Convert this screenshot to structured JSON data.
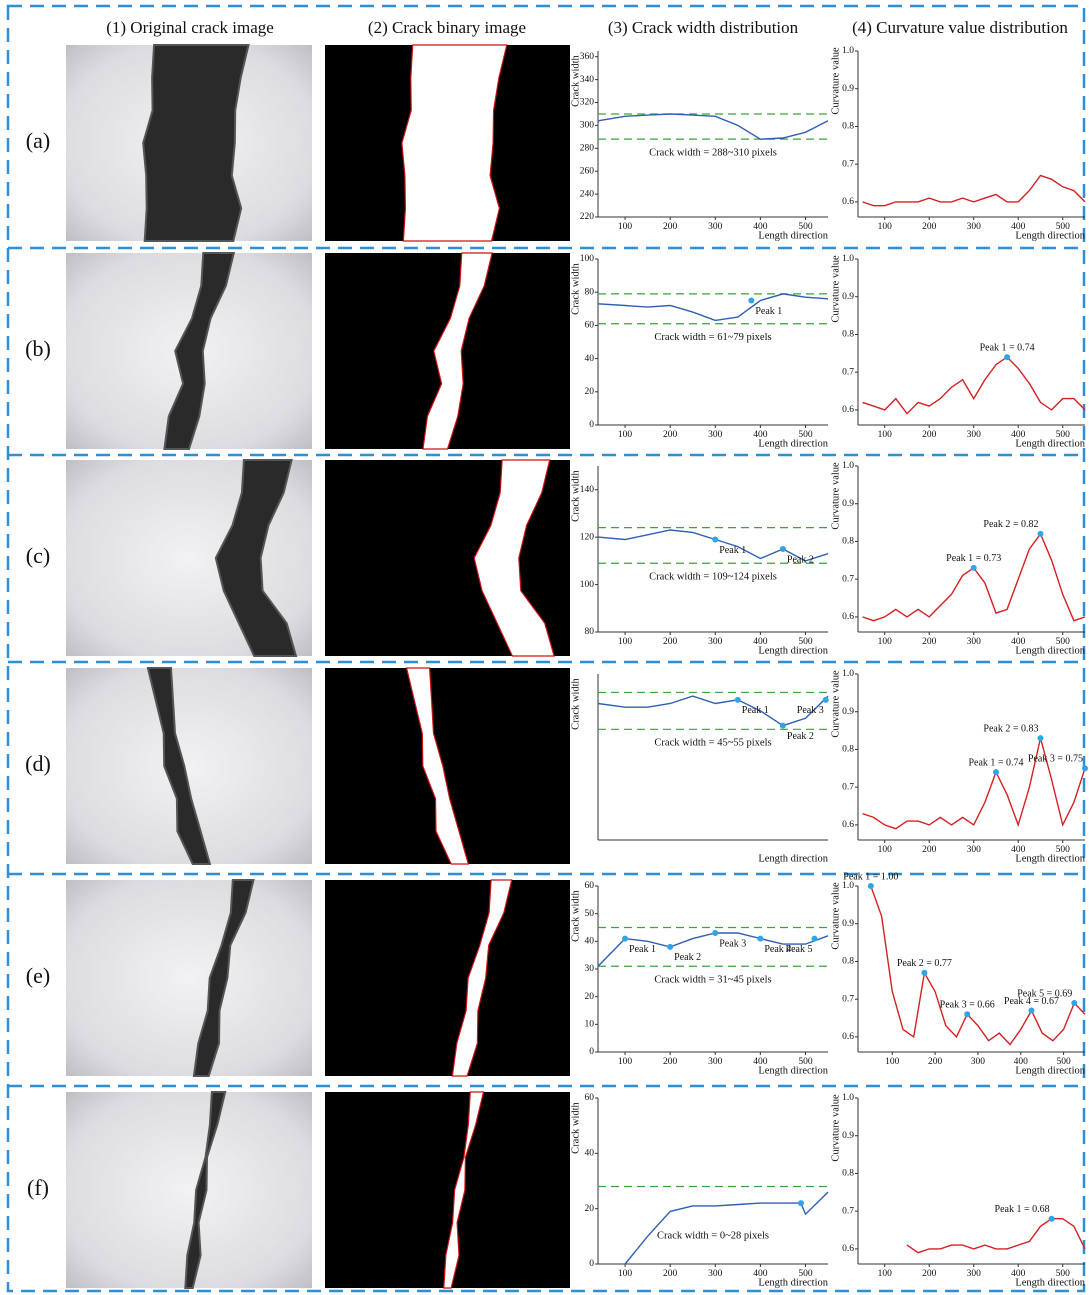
{
  "column_headers": [
    "(1) Original crack image",
    "(2) Crack binary image",
    "(3) Crack width distribution",
    "(4) Curvature value distribution"
  ],
  "row_labels": [
    "(a)",
    "(b)",
    "(c)",
    "(d)",
    "(e)",
    "(f)"
  ],
  "chart_data": [
    {
      "type": "line",
      "ylabel": "Crack width",
      "xlabel": "Length direction",
      "x": [
        40,
        100,
        150,
        200,
        250,
        300,
        350,
        400,
        450,
        500,
        550
      ],
      "xlim": [
        40,
        550
      ],
      "xticks": [
        100,
        200,
        300,
        400,
        500
      ],
      "ylim": [
        220,
        365
      ],
      "yticks": [
        220,
        240,
        260,
        280,
        300,
        320,
        340,
        360
      ],
      "series": [
        {
          "color": "#2e5fb4",
          "values": [
            304,
            308,
            309,
            310,
            309,
            308,
            300,
            288,
            289,
            294,
            304
          ]
        }
      ],
      "hlines": [
        310,
        288
      ],
      "hline_color": "#3aa33a",
      "annotation": "Crack width = 288~310 pixels",
      "peaks": [],
      "peak_color": "#2fa4e7"
    },
    {
      "type": "line",
      "ylabel": "Curvature value",
      "xlabel": "Length direction",
      "x": [
        50,
        75,
        100,
        125,
        150,
        175,
        200,
        225,
        250,
        275,
        300,
        325,
        350,
        375,
        400,
        425,
        450,
        475,
        500,
        525,
        550
      ],
      "xlim": [
        40,
        550
      ],
      "xticks": [
        100,
        200,
        300,
        400,
        500
      ],
      "ylim": [
        0.56,
        1.0
      ],
      "yticks": [
        0.6,
        0.7,
        0.8,
        0.9,
        {
          "value": 1,
          "label": "1.0"
        }
      ],
      "series": [
        {
          "color": "#d62020",
          "values": [
            0.6,
            0.59,
            0.59,
            0.6,
            0.6,
            0.6,
            0.61,
            0.6,
            0.6,
            0.61,
            0.6,
            0.61,
            0.62,
            0.6,
            0.6,
            0.63,
            0.67,
            0.66,
            0.64,
            0.63,
            0.6
          ]
        }
      ],
      "peaks": [],
      "peak_color": "#2fa4e7"
    },
    {
      "type": "line",
      "ylabel": "Crack width",
      "xlabel": "Length direction",
      "x": [
        40,
        100,
        150,
        200,
        250,
        300,
        350,
        400,
        450,
        500,
        550
      ],
      "xlim": [
        40,
        550
      ],
      "xticks": [
        100,
        200,
        300,
        400,
        500
      ],
      "ylim": [
        0,
        100
      ],
      "yticks": [
        0,
        20,
        40,
        60,
        80,
        100
      ],
      "series": [
        {
          "color": "#2e5fb4",
          "values": [
            73,
            72,
            71,
            72,
            68,
            63,
            65,
            75,
            79,
            77,
            76
          ]
        }
      ],
      "hlines": [
        79,
        61
      ],
      "hline_color": "#3aa33a",
      "annotation": "Crack width = 61~79 pixels",
      "peaks": [
        {
          "label": "Peak 1",
          "x": 380,
          "y": 75
        }
      ],
      "peak_color": "#2fa4e7"
    },
    {
      "type": "line",
      "ylabel": "Curvature value",
      "xlabel": "Length direction",
      "x": [
        50,
        75,
        100,
        125,
        150,
        175,
        200,
        225,
        250,
        275,
        300,
        325,
        350,
        375,
        400,
        425,
        450,
        475,
        500,
        525,
        550
      ],
      "xlim": [
        40,
        550
      ],
      "xticks": [
        100,
        200,
        300,
        400,
        500
      ],
      "ylim": [
        0.56,
        1.0
      ],
      "yticks": [
        0.6,
        0.7,
        0.8,
        0.9,
        {
          "value": 1,
          "label": "1.0"
        }
      ],
      "series": [
        {
          "color": "#d62020",
          "values": [
            0.62,
            0.61,
            0.6,
            0.63,
            0.59,
            0.62,
            0.61,
            0.63,
            0.66,
            0.68,
            0.63,
            0.68,
            0.72,
            0.74,
            0.71,
            0.67,
            0.62,
            0.6,
            0.63,
            0.63,
            0.6
          ]
        }
      ],
      "peaks": [
        {
          "label": "Peak 1 = 0.74",
          "x": 375,
          "y": 0.74
        }
      ],
      "peak_color": "#2fa4e7"
    },
    {
      "type": "line",
      "ylabel": "Crack width",
      "xlabel": "Length direction",
      "x": [
        40,
        100,
        150,
        200,
        250,
        300,
        350,
        400,
        450,
        500,
        550
      ],
      "xlim": [
        40,
        550
      ],
      "xticks": [
        100,
        200,
        300,
        400,
        500
      ],
      "ylim": [
        80,
        150
      ],
      "yticks": [
        80,
        100,
        120,
        140
      ],
      "series": [
        {
          "color": "#2e5fb4",
          "values": [
            120,
            119,
            121,
            123,
            122,
            119,
            116,
            111,
            115,
            110,
            113
          ]
        }
      ],
      "hlines": [
        124,
        109
      ],
      "hline_color": "#3aa33a",
      "annotation": "Crack width = 109~124 pixels",
      "peaks": [
        {
          "label": "Peak 1",
          "x": 300,
          "y": 119
        },
        {
          "label": "Peak 2",
          "x": 450,
          "y": 115
        }
      ],
      "peak_color": "#2fa4e7"
    },
    {
      "type": "line",
      "ylabel": "Curvature value",
      "xlabel": "Length direction",
      "x": [
        50,
        75,
        100,
        125,
        150,
        175,
        200,
        225,
        250,
        275,
        300,
        325,
        350,
        375,
        400,
        425,
        450,
        475,
        500,
        525,
        550
      ],
      "xlim": [
        40,
        550
      ],
      "xticks": [
        100,
        200,
        300,
        400,
        500
      ],
      "ylim": [
        0.56,
        1.0
      ],
      "yticks": [
        0.6,
        0.7,
        0.8,
        0.9,
        {
          "value": 1,
          "label": "1.0"
        }
      ],
      "series": [
        {
          "color": "#d62020",
          "values": [
            0.6,
            0.59,
            0.6,
            0.62,
            0.6,
            0.62,
            0.6,
            0.63,
            0.66,
            0.71,
            0.73,
            0.69,
            0.61,
            0.62,
            0.7,
            0.78,
            0.82,
            0.75,
            0.66,
            0.59,
            0.6
          ]
        }
      ],
      "peaks": [
        {
          "label": "Peak 1 = 0.73",
          "x": 300,
          "y": 0.73
        },
        {
          "label": "Peak 2 = 0.82",
          "x": 450,
          "y": 0.82
        }
      ],
      "peak_color": "#2fa4e7"
    },
    {
      "type": "line",
      "ylabel": "Crack width",
      "xlabel": "Length direction",
      "x": [
        40,
        100,
        150,
        200,
        250,
        300,
        350,
        400,
        450,
        500,
        550
      ],
      "xlim": [
        40,
        550
      ],
      "ylim": [
        15,
        60
      ],
      "series": [
        {
          "color": "#2e5fb4",
          "values": [
            52,
            51,
            51,
            52,
            54,
            52,
            53,
            50,
            46,
            48,
            54
          ]
        }
      ],
      "hlines": [
        55,
        45
      ],
      "hline_color": "#3aa33a",
      "annotation": "Crack width = 45~55 pixels",
      "peaks": [
        {
          "label": "Peak 1",
          "x": 350,
          "y": 53
        },
        {
          "label": "Peak 2",
          "x": 450,
          "y": 46
        },
        {
          "label": "Peak 3",
          "x": 545,
          "y": 53
        }
      ],
      "peak_color": "#2fa4e7"
    },
    {
      "type": "line",
      "ylabel": "Curvature value",
      "xlabel": "Length direction",
      "x": [
        50,
        75,
        100,
        125,
        150,
        175,
        200,
        225,
        250,
        275,
        300,
        325,
        350,
        375,
        400,
        425,
        450,
        475,
        500,
        525,
        550
      ],
      "xlim": [
        40,
        550
      ],
      "xticks": [
        100,
        200,
        300,
        400,
        500
      ],
      "ylim": [
        0.56,
        1.0
      ],
      "yticks": [
        0.6,
        0.7,
        0.8,
        0.9,
        {
          "value": 1,
          "label": "1.0"
        }
      ],
      "series": [
        {
          "color": "#d62020",
          "values": [
            0.63,
            0.62,
            0.6,
            0.59,
            0.61,
            0.61,
            0.6,
            0.62,
            0.6,
            0.62,
            0.6,
            0.66,
            0.74,
            0.68,
            0.6,
            0.7,
            0.83,
            0.72,
            0.6,
            0.66,
            0.75
          ]
        }
      ],
      "peaks": [
        {
          "label": "Peak 1 = 0.74",
          "x": 350,
          "y": 0.74
        },
        {
          "label": "Peak 2 = 0.83",
          "x": 450,
          "y": 0.83
        },
        {
          "label": "Peak 3 = 0.75",
          "x": 550,
          "y": 0.75
        }
      ],
      "peak_color": "#2fa4e7"
    },
    {
      "type": "line",
      "ylabel": "Crack width",
      "xlabel": "Length direction",
      "x": [
        40,
        100,
        150,
        200,
        250,
        300,
        350,
        400,
        450,
        500,
        550
      ],
      "xlim": [
        40,
        550
      ],
      "xticks": [
        100,
        200,
        300,
        400,
        500
      ],
      "ylim": [
        0,
        60
      ],
      "yticks": [
        0,
        10,
        20,
        30,
        40,
        50,
        60
      ],
      "series": [
        {
          "color": "#2e5fb4",
          "values": [
            31,
            41,
            40,
            38,
            41,
            43,
            43,
            41,
            39,
            39,
            42
          ]
        }
      ],
      "hlines": [
        45,
        31
      ],
      "hline_color": "#3aa33a",
      "annotation": "Crack width = 31~45 pixels",
      "peaks": [
        {
          "label": "Peak 1",
          "x": 100,
          "y": 41
        },
        {
          "label": "Peak 2",
          "x": 200,
          "y": 38
        },
        {
          "label": "Peak 3",
          "x": 300,
          "y": 43
        },
        {
          "label": "Peak 4",
          "x": 400,
          "y": 41
        },
        {
          "label": "Peak 5",
          "x": 520,
          "y": 41
        }
      ],
      "peak_color": "#2fa4e7"
    },
    {
      "type": "line",
      "ylabel": "Curvature value",
      "xlabel": "Length direction",
      "x": [
        50,
        75,
        100,
        125,
        150,
        175,
        200,
        225,
        250,
        275,
        300,
        325,
        350,
        375,
        400,
        425,
        450,
        475,
        500,
        525,
        550
      ],
      "xlim": [
        20,
        550
      ],
      "xticks": [
        100,
        200,
        300,
        400,
        500
      ],
      "ylim": [
        0.56,
        1.0
      ],
      "yticks": [
        0.6,
        0.7,
        0.8,
        0.9,
        {
          "value": 1,
          "label": "1.0"
        }
      ],
      "series": [
        {
          "color": "#d62020",
          "values": [
            1.0,
            0.92,
            0.72,
            0.62,
            0.6,
            0.77,
            0.72,
            0.63,
            0.6,
            0.66,
            0.63,
            0.59,
            0.61,
            0.58,
            0.62,
            0.67,
            0.61,
            0.59,
            0.62,
            0.69,
            0.66
          ]
        }
      ],
      "peaks": [
        {
          "label": "Peak 1 = 1.00",
          "x": 50,
          "y": 1.0
        },
        {
          "label": "Peak 2 = 0.77",
          "x": 175,
          "y": 0.77
        },
        {
          "label": "Peak 3 = 0.66",
          "x": 275,
          "y": 0.66
        },
        {
          "label": "Peak 4 = 0.67",
          "x": 425,
          "y": 0.67
        },
        {
          "label": "Peak 5 = 0.69",
          "x": 525,
          "y": 0.69
        }
      ],
      "peak_color": "#2fa4e7"
    },
    {
      "type": "line",
      "ylabel": "Crack width",
      "xlabel": "Length direction",
      "x": [
        100,
        150,
        200,
        250,
        300,
        350,
        400,
        450,
        490,
        500,
        550
      ],
      "xlim": [
        40,
        550
      ],
      "xticks": [
        100,
        200,
        300,
        400,
        500
      ],
      "ylim": [
        0,
        60
      ],
      "yticks": [
        0,
        20,
        40,
        60
      ],
      "series": [
        {
          "color": "#2e5fb4",
          "values": [
            0,
            10,
            19,
            21,
            21,
            21.5,
            22,
            22,
            22,
            18,
            26
          ]
        }
      ],
      "hlines": [
        28
      ],
      "hline_color": "#3aa33a",
      "annotation": "Crack width = 0~28 pixels",
      "peaks": [
        {
          "x": 490,
          "y": 22
        }
      ],
      "peak_color": "#2fa4e7"
    },
    {
      "type": "line",
      "ylabel": "Curvature value",
      "xlabel": "Length direction",
      "x": [
        50,
        75,
        100,
        125,
        150,
        175,
        200,
        225,
        250,
        275,
        300,
        325,
        350,
        375,
        400,
        425,
        450,
        475,
        500,
        525,
        550
      ],
      "xlim": [
        40,
        550
      ],
      "xticks": [
        100,
        200,
        300,
        400,
        500
      ],
      "ylim": [
        0.56,
        1.0
      ],
      "yticks": [
        0.6,
        0.7,
        0.8,
        0.9,
        {
          "value": 1,
          "label": "1.0"
        }
      ],
      "series": [
        {
          "color": "#d62020",
          "values": [
            null,
            null,
            null,
            null,
            0.61,
            0.59,
            0.6,
            0.6,
            0.61,
            0.61,
            0.6,
            0.61,
            0.6,
            0.6,
            0.61,
            0.62,
            0.66,
            0.68,
            0.68,
            0.66,
            0.6
          ]
        }
      ],
      "peaks": [
        {
          "label": "Peak 1 = 0.68",
          "x": 475,
          "y": 0.68
        }
      ],
      "peak_color": "#2fa4e7"
    }
  ]
}
